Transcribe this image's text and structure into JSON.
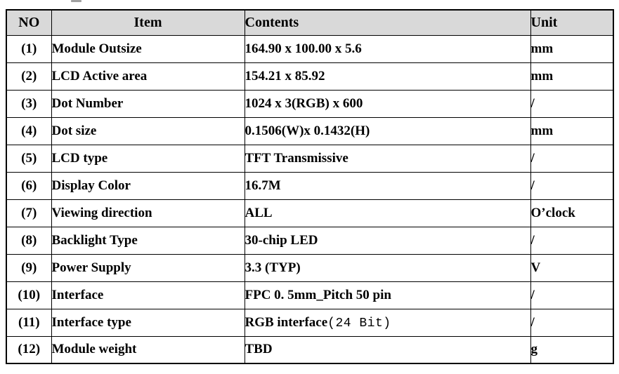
{
  "table": {
    "header_bg": "#d9d9d9",
    "border_color": "#000000",
    "columns": [
      {
        "key": "no",
        "label": "NO"
      },
      {
        "key": "item",
        "label": "Item"
      },
      {
        "key": "contents",
        "label": "Contents"
      },
      {
        "key": "unit",
        "label": "Unit"
      }
    ],
    "rows": [
      {
        "no": "(1)",
        "item": "Module Outsize",
        "contents": "164.90 x 100.00 x 5.6",
        "unit": "mm"
      },
      {
        "no": "(2)",
        "item": "LCD Active area",
        "contents": "154.21 x 85.92",
        "unit": "mm"
      },
      {
        "no": "(3)",
        "item": "Dot Number",
        "contents": "1024 x 3(RGB) x 600",
        "unit": "/"
      },
      {
        "no": "(4)",
        "item": "Dot size",
        "contents": "0.1506(W)x 0.1432(H)",
        "unit": "mm"
      },
      {
        "no": "(5)",
        "item": "LCD type",
        "contents": "TFT Transmissive",
        "unit": "/"
      },
      {
        "no": "(6)",
        "item": "Display Color",
        "contents": "16.7M",
        "unit": "/"
      },
      {
        "no": "(7)",
        "item": "Viewing direction",
        "contents": "ALL",
        "unit": "O’clock"
      },
      {
        "no": "(8)",
        "item": "Backlight Type",
        "contents": "30-chip LED",
        "unit": "/"
      },
      {
        "no": "(9)",
        "item": "Power Supply",
        "contents": "3.3 (TYP)",
        "unit": "V"
      },
      {
        "no": "(10)",
        "item": "Interface",
        "contents": "FPC 0. 5mm_Pitch 50 pin",
        "unit": "/"
      },
      {
        "no": "(11)",
        "item": "Interface type",
        "contents": "RGB interface(24 Bit)",
        "contents_parts": [
          {
            "text": "RGB interface",
            "mono": false
          },
          {
            "text": "(24 Bit)",
            "mono": true
          }
        ],
        "unit": "/"
      },
      {
        "no": "(12)",
        "item": "Module weight",
        "contents": "TBD",
        "unit": "g"
      }
    ]
  }
}
